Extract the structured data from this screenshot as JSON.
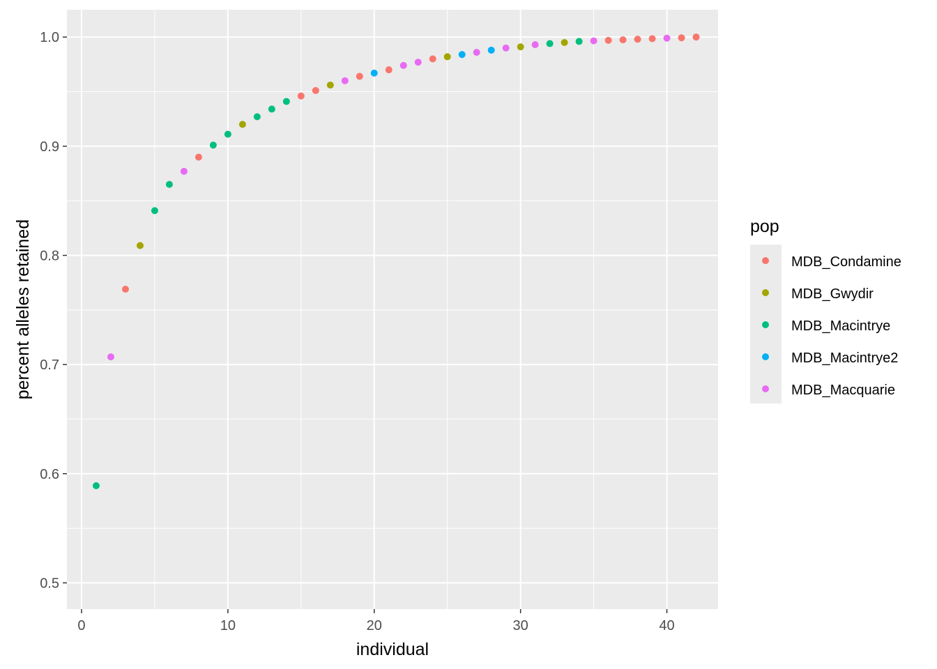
{
  "chart_data": {
    "type": "scatter",
    "title": "",
    "xlabel": "individual",
    "ylabel": "percent alleles retained",
    "xlim": [
      -1,
      43.5
    ],
    "ylim": [
      0.476,
      1.025
    ],
    "x_ticks": [
      "0",
      "10",
      "20",
      "30",
      "40"
    ],
    "x_tick_values": [
      0,
      10,
      20,
      30,
      40
    ],
    "y_ticks": [
      "0.5",
      "0.6",
      "0.7",
      "0.8",
      "0.9",
      "1.0"
    ],
    "y_tick_values": [
      0.5,
      0.6,
      0.7,
      0.8,
      0.9,
      1.0
    ],
    "grid": true,
    "panel_background": "#EBEBEB",
    "legend": {
      "title": "pop",
      "position": "right",
      "entries": [
        {
          "name": "MDB_Condamine",
          "color": "#F8766D"
        },
        {
          "name": "MDB_Gwydir",
          "color": "#A3A500"
        },
        {
          "name": "MDB_Macintrye",
          "color": "#00BF7D"
        },
        {
          "name": "MDB_Macintrye2",
          "color": "#00B0F6"
        },
        {
          "name": "MDB_Macquarie",
          "color": "#E76BF3"
        }
      ]
    },
    "points": [
      {
        "x": 1,
        "y": 0.589,
        "pop": "MDB_Macintrye"
      },
      {
        "x": 2,
        "y": 0.707,
        "pop": "MDB_Macquarie"
      },
      {
        "x": 3,
        "y": 0.769,
        "pop": "MDB_Condamine"
      },
      {
        "x": 4,
        "y": 0.809,
        "pop": "MDB_Gwydir"
      },
      {
        "x": 5,
        "y": 0.841,
        "pop": "MDB_Macintrye"
      },
      {
        "x": 6,
        "y": 0.865,
        "pop": "MDB_Macintrye"
      },
      {
        "x": 7,
        "y": 0.877,
        "pop": "MDB_Macquarie"
      },
      {
        "x": 8,
        "y": 0.89,
        "pop": "MDB_Condamine"
      },
      {
        "x": 9,
        "y": 0.901,
        "pop": "MDB_Macintrye"
      },
      {
        "x": 10,
        "y": 0.911,
        "pop": "MDB_Macintrye"
      },
      {
        "x": 11,
        "y": 0.92,
        "pop": "MDB_Gwydir"
      },
      {
        "x": 12,
        "y": 0.927,
        "pop": "MDB_Macintrye"
      },
      {
        "x": 13,
        "y": 0.934,
        "pop": "MDB_Macintrye"
      },
      {
        "x": 14,
        "y": 0.941,
        "pop": "MDB_Macintrye"
      },
      {
        "x": 15,
        "y": 0.946,
        "pop": "MDB_Condamine"
      },
      {
        "x": 16,
        "y": 0.951,
        "pop": "MDB_Condamine"
      },
      {
        "x": 17,
        "y": 0.956,
        "pop": "MDB_Gwydir"
      },
      {
        "x": 18,
        "y": 0.96,
        "pop": "MDB_Macquarie"
      },
      {
        "x": 19,
        "y": 0.964,
        "pop": "MDB_Condamine"
      },
      {
        "x": 20,
        "y": 0.967,
        "pop": "MDB_Macintrye2"
      },
      {
        "x": 21,
        "y": 0.97,
        "pop": "MDB_Condamine"
      },
      {
        "x": 22,
        "y": 0.974,
        "pop": "MDB_Macquarie"
      },
      {
        "x": 23,
        "y": 0.977,
        "pop": "MDB_Macquarie"
      },
      {
        "x": 24,
        "y": 0.98,
        "pop": "MDB_Condamine"
      },
      {
        "x": 25,
        "y": 0.982,
        "pop": "MDB_Gwydir"
      },
      {
        "x": 26,
        "y": 0.984,
        "pop": "MDB_Macintrye2"
      },
      {
        "x": 27,
        "y": 0.986,
        "pop": "MDB_Macquarie"
      },
      {
        "x": 28,
        "y": 0.988,
        "pop": "MDB_Macintrye2"
      },
      {
        "x": 29,
        "y": 0.99,
        "pop": "MDB_Macquarie"
      },
      {
        "x": 30,
        "y": 0.991,
        "pop": "MDB_Gwydir"
      },
      {
        "x": 31,
        "y": 0.993,
        "pop": "MDB_Macquarie"
      },
      {
        "x": 32,
        "y": 0.994,
        "pop": "MDB_Macintrye"
      },
      {
        "x": 33,
        "y": 0.995,
        "pop": "MDB_Gwydir"
      },
      {
        "x": 34,
        "y": 0.996,
        "pop": "MDB_Macintrye"
      },
      {
        "x": 35,
        "y": 0.9965,
        "pop": "MDB_Macquarie"
      },
      {
        "x": 36,
        "y": 0.997,
        "pop": "MDB_Condamine"
      },
      {
        "x": 37,
        "y": 0.9975,
        "pop": "MDB_Condamine"
      },
      {
        "x": 38,
        "y": 0.998,
        "pop": "MDB_Condamine"
      },
      {
        "x": 39,
        "y": 0.9985,
        "pop": "MDB_Condamine"
      },
      {
        "x": 40,
        "y": 0.999,
        "pop": "MDB_Macquarie"
      },
      {
        "x": 41,
        "y": 0.9993,
        "pop": "MDB_Condamine"
      },
      {
        "x": 42,
        "y": 1.0,
        "pop": "MDB_Condamine"
      }
    ]
  }
}
